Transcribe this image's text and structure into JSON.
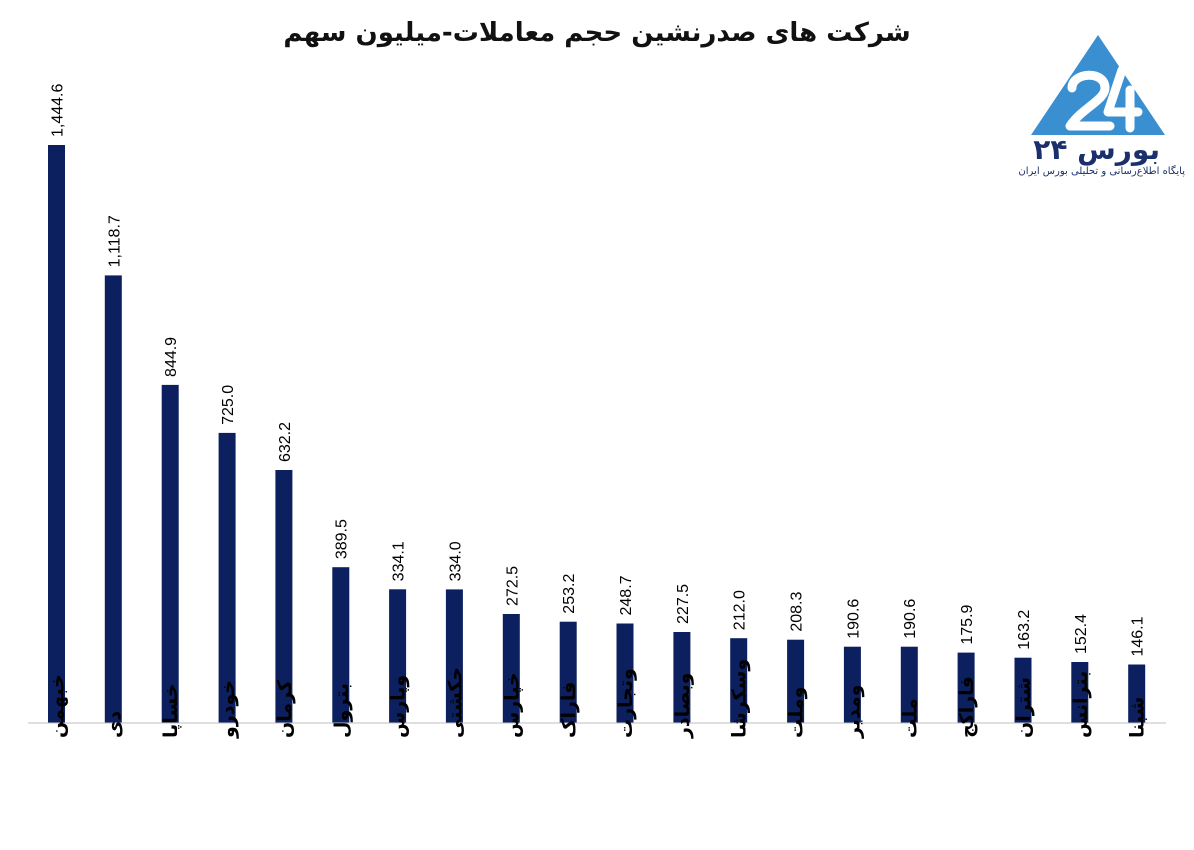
{
  "chart_data": {
    "type": "bar",
    "title": "شرکت های صدرنشین حجم معاملات-میلیون سهم",
    "categories": [
      "خبهمن",
      "دی",
      "خساپا",
      "خودرو",
      "کرمان",
      "بترول",
      "وپارس",
      "حکشتی",
      "خپارس",
      "فاراک",
      "وتجارت",
      "وبصادر",
      "وسکرشا",
      "وملت",
      "ومدیر",
      "ملت",
      "فاراکج",
      "شتران",
      "بترانس",
      "شبنا"
    ],
    "values": [
      1444.6,
      1118.7,
      844.9,
      725.0,
      632.2,
      389.5,
      334.1,
      334.0,
      272.5,
      253.2,
      248.7,
      227.5,
      212.0,
      208.3,
      190.6,
      190.6,
      175.9,
      163.2,
      152.4,
      146.1
    ],
    "value_labels": [
      "1,444.6",
      "1,118.7",
      "844.9",
      "725.0",
      "632.2",
      "389.5",
      "334.1",
      "334.0",
      "272.5",
      "253.2",
      "248.7",
      "227.5",
      "212.0",
      "208.3",
      "190.6",
      "190.6",
      "175.9",
      "163.2",
      "152.4",
      "146.1"
    ],
    "bar_color": "#0c1f5e",
    "grid": false,
    "legend": "none",
    "ylim": [
      0,
      1444.6
    ]
  },
  "brand": {
    "name": "بورس ۲۴",
    "tagline": "پایگاه اطلاع‌رسانی و تحلیلی بورس ایران",
    "triangle_color": "#3a8fd1",
    "text_color": "#1a2f6b"
  }
}
